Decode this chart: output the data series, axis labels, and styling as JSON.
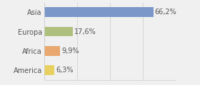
{
  "categories": [
    "Asia",
    "Europa",
    "Africa",
    "America"
  ],
  "values": [
    66.2,
    17.6,
    9.9,
    6.3
  ],
  "labels": [
    "66,2%",
    "17,6%",
    "9,9%",
    "6,3%"
  ],
  "bar_colors": [
    "#7b96c8",
    "#afc07e",
    "#e8a870",
    "#e8d060"
  ],
  "background_color": "#f0f0f0",
  "xlim": [
    0,
    80
  ],
  "grid_ticks": [
    0,
    20,
    40,
    60,
    80
  ],
  "label_fontsize": 7.0,
  "tick_fontsize": 7.0,
  "bar_height": 0.5
}
